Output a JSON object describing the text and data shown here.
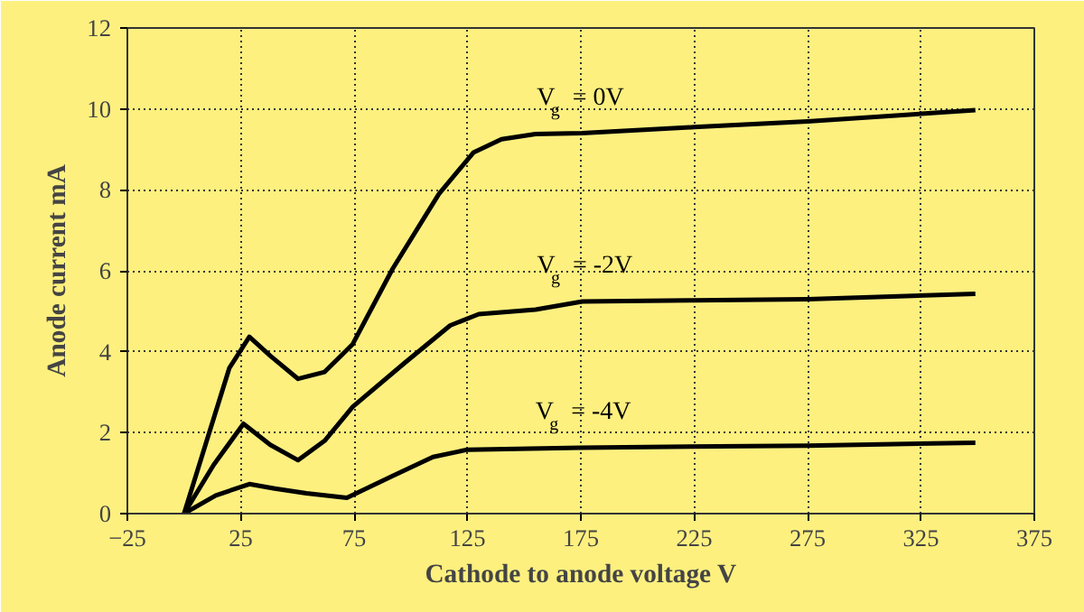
{
  "chart_data": {
    "type": "line",
    "xlabel": "Cathode to anode voltage V",
    "ylabel": "Anode current mA",
    "xlim": [
      -25,
      375
    ],
    "xticks": [
      -25,
      25,
      75,
      125,
      175,
      225,
      275,
      325,
      375
    ],
    "ylim": [
      0,
      12
    ],
    "yticks": [
      0,
      2,
      4,
      6,
      8,
      10,
      12
    ],
    "grid": true,
    "line_style": "solid",
    "marker": "none",
    "series": [
      {
        "name": "V$_{g}$ = 0V",
        "color": "#000000",
        "x": [
          0,
          10,
          20,
          28.8,
          38,
          50.3,
          62,
          74.4,
          92,
          112.4,
          127.6,
          140,
          155,
          175.6,
          225,
          275,
          349
        ],
        "values": [
          0,
          1.8,
          3.6,
          4.37,
          3.9,
          3.33,
          3.5,
          4.19,
          6.05,
          7.9,
          8.92,
          9.25,
          9.38,
          9.4,
          9.55,
          9.69,
          9.97
        ]
      },
      {
        "name": "V$_{g}$ = -2V",
        "color": "#000000",
        "x": [
          0,
          13,
          26.2,
          38,
          50.3,
          62,
          74.4,
          97.2,
          117.4,
          130,
          155,
          175.7,
          225,
          275,
          349
        ],
        "values": [
          0,
          1.2,
          2.22,
          1.7,
          1.32,
          1.8,
          2.64,
          3.72,
          4.65,
          4.93,
          5.04,
          5.24,
          5.27,
          5.3,
          5.43
        ]
      },
      {
        "name": "V$_{g}$ = -4V",
        "color": "#000000",
        "x": [
          0,
          14,
          28.8,
          40,
          54,
          71.8,
          92,
          109.8,
          125,
          175,
          275,
          349
        ],
        "values": [
          0,
          0.45,
          0.73,
          0.62,
          0.5,
          0.39,
          0.93,
          1.4,
          1.58,
          1.63,
          1.68,
          1.75
        ]
      }
    ]
  }
}
